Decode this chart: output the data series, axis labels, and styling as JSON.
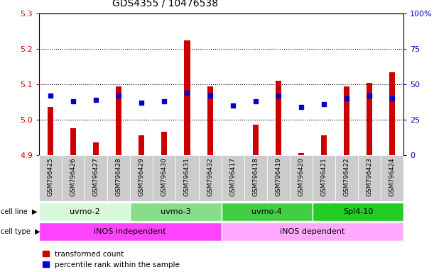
{
  "title": "GDS4355 / 10476538",
  "samples": [
    "GSM796425",
    "GSM796426",
    "GSM796427",
    "GSM796428",
    "GSM796429",
    "GSM796430",
    "GSM796431",
    "GSM796432",
    "GSM796417",
    "GSM796418",
    "GSM796419",
    "GSM796420",
    "GSM796421",
    "GSM796422",
    "GSM796423",
    "GSM796424"
  ],
  "red_values": [
    5.035,
    4.975,
    4.935,
    5.095,
    4.955,
    4.965,
    5.225,
    5.095,
    4.885,
    4.985,
    5.11,
    4.905,
    4.955,
    5.095,
    5.105,
    5.135
  ],
  "blue_percentiles": [
    42,
    38,
    39,
    42,
    37,
    38,
    44,
    42,
    35,
    38,
    42,
    34,
    36,
    40,
    42,
    40
  ],
  "ylim_left": [
    4.9,
    5.3
  ],
  "ylim_right": [
    0,
    100
  ],
  "yticks_left": [
    4.9,
    5.0,
    5.1,
    5.2,
    5.3
  ],
  "yticks_right": [
    0,
    25,
    50,
    75,
    100
  ],
  "ytick_right_labels": [
    "0",
    "25",
    "50",
    "75",
    "100%"
  ],
  "cell_lines": [
    {
      "label": "uvmo-2",
      "start": 0,
      "end": 4,
      "color": "#d9f7d9"
    },
    {
      "label": "uvmo-3",
      "start": 4,
      "end": 8,
      "color": "#88dd88"
    },
    {
      "label": "uvmo-4",
      "start": 8,
      "end": 12,
      "color": "#44cc44"
    },
    {
      "label": "Spl4-10",
      "start": 12,
      "end": 16,
      "color": "#22cc22"
    }
  ],
  "cell_types": [
    {
      "label": "iNOS independent",
      "start": 0,
      "end": 8,
      "color": "#ff44ff"
    },
    {
      "label": "iNOS dependent",
      "start": 8,
      "end": 16,
      "color": "#ffaaff"
    }
  ],
  "bar_bottom": 4.9,
  "legend_red": "transformed count",
  "legend_blue": "percentile rank within the sample",
  "left_axis_color": "#cc0000",
  "right_axis_color": "#0000cc",
  "bar_width": 0.25,
  "bar_color": "#cc0000",
  "blue_color": "#0000cc",
  "grid_lines": [
    5.0,
    5.1,
    5.2
  ],
  "sample_box_color": "#cccccc"
}
